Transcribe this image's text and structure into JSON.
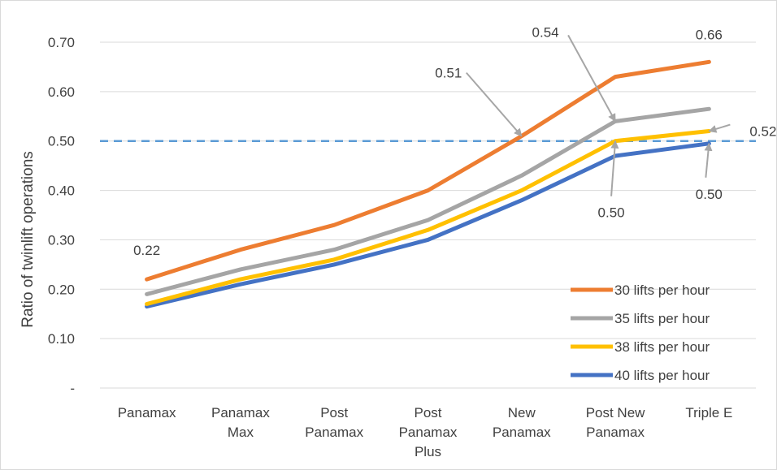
{
  "chart_data": {
    "type": "line",
    "title": "",
    "xlabel": "",
    "ylabel": "Ratio of twinlift operations",
    "categories": [
      [
        "Panamax"
      ],
      [
        "Panamax",
        "Max"
      ],
      [
        "Post",
        "Panamax"
      ],
      [
        "Post",
        "Panamax",
        "Plus"
      ],
      [
        "New",
        "Panamax"
      ],
      [
        "Post New",
        "Panamax"
      ],
      [
        "Triple E"
      ]
    ],
    "ylim": [
      0,
      0.7
    ],
    "yticks": [
      {
        "value": 0,
        "label": "-"
      },
      {
        "value": 0.1,
        "label": "0.10"
      },
      {
        "value": 0.2,
        "label": "0.20"
      },
      {
        "value": 0.3,
        "label": "0.30"
      },
      {
        "value": 0.4,
        "label": "0.40"
      },
      {
        "value": 0.5,
        "label": "0.50"
      },
      {
        "value": 0.6,
        "label": "0.60"
      },
      {
        "value": 0.7,
        "label": "0.70"
      }
    ],
    "grid": true,
    "legend_position": "bottom-right",
    "reference_line": {
      "value": 0.5,
      "style": "dashed",
      "color": "#5B9BD5"
    },
    "series": [
      {
        "name": "30 lifts per hour",
        "color": "#ED7D31",
        "values": [
          0.22,
          0.28,
          0.33,
          0.4,
          0.51,
          0.63,
          0.66
        ]
      },
      {
        "name": "35 lifts per hour",
        "color": "#A5A5A5",
        "values": [
          0.19,
          0.24,
          0.28,
          0.34,
          0.43,
          0.54,
          0.565
        ]
      },
      {
        "name": "38 lifts per hour",
        "color": "#FFC000",
        "values": [
          0.17,
          0.22,
          0.26,
          0.32,
          0.4,
          0.5,
          0.52
        ]
      },
      {
        "name": "40 lifts per hour",
        "color": "#4472C4",
        "values": [
          0.165,
          0.21,
          0.25,
          0.3,
          0.38,
          0.47,
          0.495
        ]
      }
    ],
    "annotations": [
      {
        "text": "0.22",
        "series": 0,
        "index": 0,
        "arrow": false
      },
      {
        "text": "0.51",
        "series": 0,
        "index": 4,
        "arrow": true
      },
      {
        "text": "0.54",
        "series": 1,
        "index": 5,
        "arrow": true
      },
      {
        "text": "0.66",
        "series": 0,
        "index": 6,
        "arrow": false
      },
      {
        "text": "0.52",
        "series": 2,
        "index": 6,
        "arrow": true
      },
      {
        "text": "0.50",
        "series": 2,
        "index": 5,
        "arrow": true
      },
      {
        "text": "0.50",
        "series": 3,
        "index": 6,
        "arrow": true
      }
    ]
  }
}
